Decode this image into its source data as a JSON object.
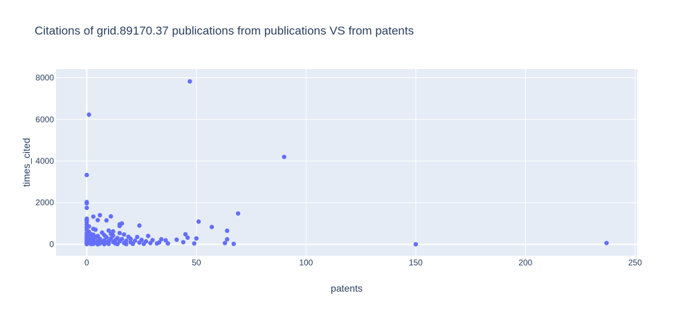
{
  "chart_data": {
    "type": "scatter",
    "title": "Citations of grid.89170.37 publications from publications VS from patents",
    "xlabel": "patents",
    "ylabel": "times_cited",
    "xlim": [
      -14,
      251
    ],
    "ylim": [
      -550,
      8420
    ],
    "xticks": [
      0,
      50,
      100,
      150,
      200,
      250
    ],
    "yticks": [
      0,
      2000,
      4000,
      6000,
      8000
    ],
    "xtick_labels": [
      "0",
      "50",
      "100",
      "150",
      "200",
      "250"
    ],
    "ytick_labels": [
      "0",
      "2000",
      "4000",
      "6000",
      "8000"
    ],
    "grid": true,
    "colors": {
      "marker": "#636efa",
      "plot_bg": "#e5ecf6",
      "grid": "#ffffff",
      "text": "#2a3f5f"
    },
    "points": [
      {
        "x": 47,
        "y": 7830
      },
      {
        "x": 1,
        "y": 6230
      },
      {
        "x": 90,
        "y": 4200
      },
      {
        "x": 0,
        "y": 3330
      },
      {
        "x": 0,
        "y": 2030
      },
      {
        "x": 0,
        "y": 1970
      },
      {
        "x": 0,
        "y": 1750
      },
      {
        "x": 69,
        "y": 1480
      },
      {
        "x": 6,
        "y": 1400
      },
      {
        "x": 11,
        "y": 1340
      },
      {
        "x": 3,
        "y": 1330
      },
      {
        "x": 0,
        "y": 1230
      },
      {
        "x": 0,
        "y": 1160
      },
      {
        "x": 5,
        "y": 1160
      },
      {
        "x": 9,
        "y": 1150
      },
      {
        "x": 51,
        "y": 1090
      },
      {
        "x": 0,
        "y": 1080
      },
      {
        "x": 16,
        "y": 1000
      },
      {
        "x": 15,
        "y": 960
      },
      {
        "x": 0,
        "y": 950
      },
      {
        "x": 24,
        "y": 900
      },
      {
        "x": 15,
        "y": 880
      },
      {
        "x": 1,
        "y": 860
      },
      {
        "x": 57,
        "y": 830
      },
      {
        "x": 0,
        "y": 820
      },
      {
        "x": 3,
        "y": 740
      },
      {
        "x": 4,
        "y": 700
      },
      {
        "x": 0,
        "y": 700
      },
      {
        "x": 10,
        "y": 660
      },
      {
        "x": 64,
        "y": 650
      },
      {
        "x": 12,
        "y": 620
      },
      {
        "x": 1,
        "y": 600
      },
      {
        "x": 7,
        "y": 560
      },
      {
        "x": 15,
        "y": 540
      },
      {
        "x": 0,
        "y": 540
      },
      {
        "x": 45,
        "y": 480
      },
      {
        "x": 11,
        "y": 500
      },
      {
        "x": 2,
        "y": 480
      },
      {
        "x": 17,
        "y": 470
      },
      {
        "x": 3,
        "y": 460
      },
      {
        "x": 8,
        "y": 440
      },
      {
        "x": 0,
        "y": 420
      },
      {
        "x": 12,
        "y": 420
      },
      {
        "x": 5,
        "y": 400
      },
      {
        "x": 28,
        "y": 400
      },
      {
        "x": 1,
        "y": 380
      },
      {
        "x": 19,
        "y": 360
      },
      {
        "x": 23,
        "y": 350
      },
      {
        "x": 46,
        "y": 320
      },
      {
        "x": 9,
        "y": 340
      },
      {
        "x": 4,
        "y": 330
      },
      {
        "x": 0,
        "y": 320
      },
      {
        "x": 14,
        "y": 300
      },
      {
        "x": 50,
        "y": 280
      },
      {
        "x": 2,
        "y": 300
      },
      {
        "x": 11,
        "y": 280
      },
      {
        "x": 20,
        "y": 260
      },
      {
        "x": 6,
        "y": 260
      },
      {
        "x": 64,
        "y": 240
      },
      {
        "x": 34,
        "y": 240
      },
      {
        "x": 16,
        "y": 250
      },
      {
        "x": 0,
        "y": 240
      },
      {
        "x": 41,
        "y": 220
      },
      {
        "x": 3,
        "y": 220
      },
      {
        "x": 25,
        "y": 210
      },
      {
        "x": 30,
        "y": 200
      },
      {
        "x": 36,
        "y": 190
      },
      {
        "x": 13,
        "y": 200
      },
      {
        "x": 8,
        "y": 190
      },
      {
        "x": 1,
        "y": 180
      },
      {
        "x": 18,
        "y": 170
      },
      {
        "x": 22,
        "y": 170
      },
      {
        "x": 10,
        "y": 160
      },
      {
        "x": 5,
        "y": 150
      },
      {
        "x": 0,
        "y": 150
      },
      {
        "x": 27,
        "y": 140
      },
      {
        "x": 15,
        "y": 140
      },
      {
        "x": 2,
        "y": 130
      },
      {
        "x": 7,
        "y": 120
      },
      {
        "x": 44,
        "y": 100
      },
      {
        "x": 12,
        "y": 110
      },
      {
        "x": 20,
        "y": 100
      },
      {
        "x": 33,
        "y": 90
      },
      {
        "x": 0,
        "y": 90
      },
      {
        "x": 4,
        "y": 80
      },
      {
        "x": 9,
        "y": 80
      },
      {
        "x": 24,
        "y": 80
      },
      {
        "x": 63,
        "y": 60
      },
      {
        "x": 29,
        "y": 60
      },
      {
        "x": 17,
        "y": 60
      },
      {
        "x": 1,
        "y": 60
      },
      {
        "x": 49,
        "y": 40
      },
      {
        "x": 37,
        "y": 40
      },
      {
        "x": 32,
        "y": 40
      },
      {
        "x": 6,
        "y": 40
      },
      {
        "x": 13,
        "y": 40
      },
      {
        "x": 67,
        "y": 20
      },
      {
        "x": 0,
        "y": 30
      },
      {
        "x": 3,
        "y": 20
      },
      {
        "x": 10,
        "y": 20
      },
      {
        "x": 21,
        "y": 20
      },
      {
        "x": 26,
        "y": 20
      },
      {
        "x": 14,
        "y": 10
      },
      {
        "x": 2,
        "y": 10
      },
      {
        "x": 8,
        "y": 5
      },
      {
        "x": 0,
        "y": 5
      },
      {
        "x": 18,
        "y": 5
      },
      {
        "x": 5,
        "y": 0
      },
      {
        "x": 237,
        "y": 60
      },
      {
        "x": 150,
        "y": 0
      }
    ]
  }
}
